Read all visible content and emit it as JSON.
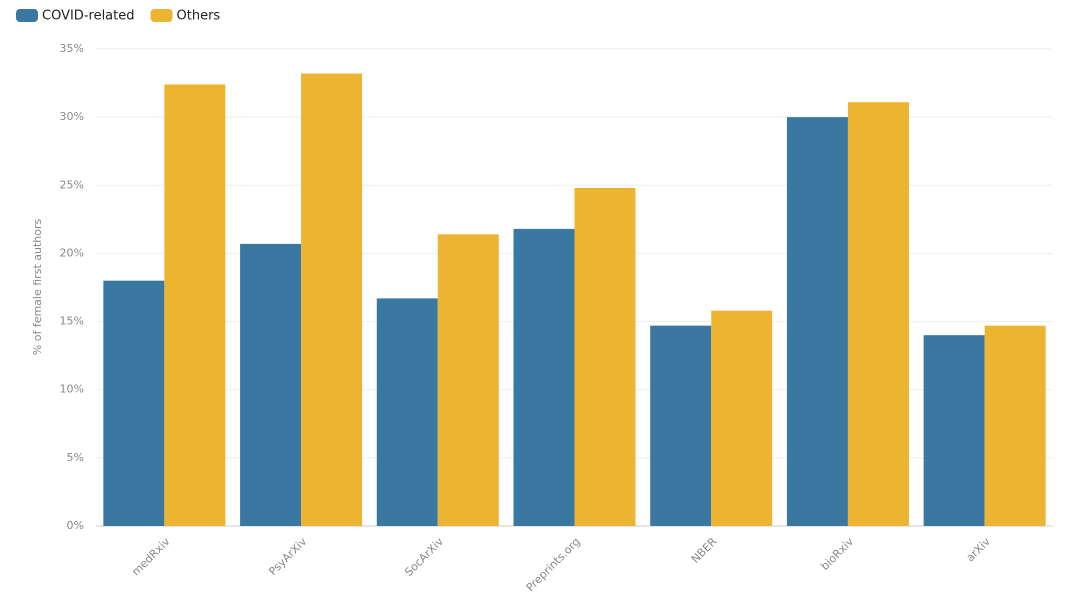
{
  "chart_data": {
    "type": "bar",
    "y_label": "% of female first authors",
    "categories": [
      "medRxiv",
      "PsyArXiv",
      "SocArXiv",
      "Preprints.org",
      "NBER",
      "bioRxiv",
      "arXiv"
    ],
    "series": [
      {
        "name": "COVID-related",
        "color": "#3a78a1",
        "values": [
          18.0,
          20.7,
          16.7,
          21.8,
          14.7,
          30.0,
          14.0
        ]
      },
      {
        "name": "Others",
        "color": "#edb432",
        "values": [
          32.4,
          33.2,
          21.4,
          24.8,
          15.8,
          31.1,
          14.7
        ]
      }
    ],
    "ylim": [
      0,
      35
    ],
    "yticks": [
      {
        "value": 0,
        "label": "0%"
      },
      {
        "value": 5,
        "label": "5%"
      },
      {
        "value": 10,
        "label": "10%"
      },
      {
        "value": 15,
        "label": "15%"
      },
      {
        "value": 20,
        "label": "20%"
      },
      {
        "value": 25,
        "label": "25%"
      },
      {
        "value": 30,
        "label": "30%"
      },
      {
        "value": 35,
        "label": "35%"
      }
    ],
    "grid": true
  }
}
